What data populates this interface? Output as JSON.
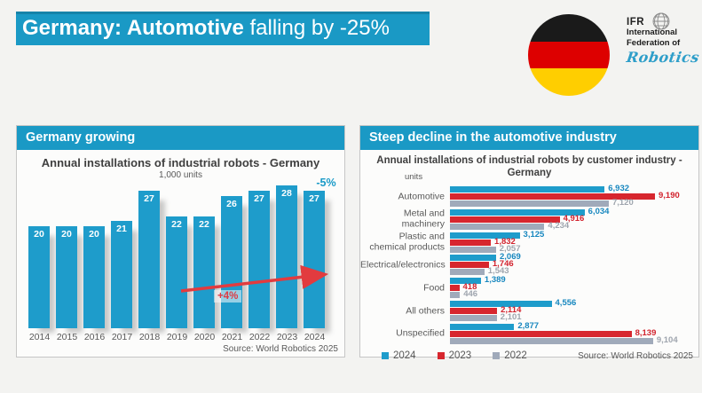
{
  "title_bar": {
    "bold": "Germany: Automotive",
    "regular": " falling by -25%"
  },
  "logo": {
    "abbr": "IFR",
    "org_line1": "International",
    "org_line2": "Federation of",
    "brand": "Robotics"
  },
  "flag_colors": [
    "#1a1a1a",
    "#dd0000",
    "#ffce00"
  ],
  "left_panel": {
    "header": "Germany growing",
    "source": "Source: World Robotics 2025"
  },
  "right_panel": {
    "header": "Steep decline in the automotive industry",
    "title_line1": "Annual installations of industrial robots by customer industry -",
    "title_line2": "Germany",
    "units_label": "units",
    "source": "Source: World Robotics 2025"
  },
  "chart_data": [
    {
      "type": "bar",
      "title": "Annual installations of industrial robots - Germany",
      "subtitle": "1,000 units",
      "categories": [
        "2014",
        "2015",
        "2016",
        "2017",
        "2018",
        "2019",
        "2020",
        "2021",
        "2022",
        "2023",
        "2024"
      ],
      "values": [
        20,
        20,
        20,
        21,
        27,
        22,
        22,
        26,
        27,
        28,
        27
      ],
      "ylabel": "1,000 units",
      "ylim": [
        0,
        30
      ],
      "bar_color": "#1e9ccb",
      "annotations": {
        "top_right": "-5%",
        "trend": "+4%"
      },
      "grid": false,
      "source": "Source: World Robotics 2025"
    },
    {
      "type": "bar",
      "orientation": "horizontal",
      "title": "Annual installations of industrial robots by customer industry - Germany",
      "units_label": "units",
      "categories": [
        "Automotive",
        "Metal and machinery",
        "Plastic and chemical products",
        "Electrical/electronics",
        "Food",
        "All others",
        "Unspecified"
      ],
      "series": [
        {
          "name": "2024",
          "color": "#1e9ccb",
          "label_color": "#1787bf",
          "values": [
            6932,
            6034,
            3125,
            2069,
            1389,
            4556,
            2877
          ]
        },
        {
          "name": "2023",
          "color": "#d7262e",
          "label_color": "#d2232e",
          "values": [
            9190,
            4916,
            1832,
            1746,
            418,
            2114,
            8139
          ]
        },
        {
          "name": "2022",
          "color": "#a0aaba",
          "label_color": "#9fa5ae",
          "values": [
            7120,
            4234,
            2057,
            1543,
            446,
            2101,
            9104
          ]
        }
      ],
      "xmax": 9190,
      "legend_position": "bottom-left",
      "grid": false,
      "source": "Source: World Robotics 2025"
    }
  ],
  "colors": {
    "accent_blue": "#1a99c5",
    "bar_blue": "#1e9ccb",
    "bar_red": "#d7262e",
    "bar_gray": "#a0aaba",
    "arrow_red": "#e23b3f",
    "page_bg": "#f3f3f1",
    "panel_bg": "#fcfcfb",
    "text_dark": "#3f3f3f",
    "text_mid": "#595959"
  }
}
